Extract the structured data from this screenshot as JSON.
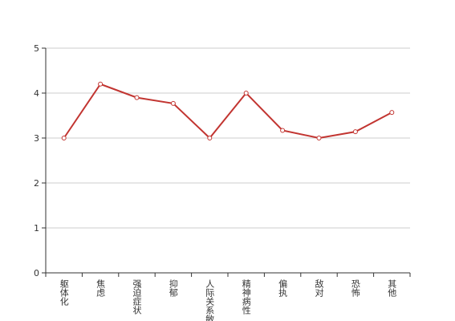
{
  "chart_data": {
    "type": "line",
    "categories": [
      "躯体化",
      "焦虑",
      "强迫症状",
      "抑郁",
      "人际关系敏感",
      "精神病性",
      "偏执",
      "敌对",
      "恐怖",
      "其他"
    ],
    "series": [
      {
        "color": "#c23531",
        "values": [
          3.0,
          4.2,
          3.9,
          3.77,
          3.0,
          4.0,
          3.17,
          3.0,
          3.14,
          3.57
        ]
      }
    ],
    "ylim": [
      0,
      5
    ],
    "yticks": [
      0,
      1,
      2,
      3,
      4,
      5
    ],
    "grid": true
  }
}
